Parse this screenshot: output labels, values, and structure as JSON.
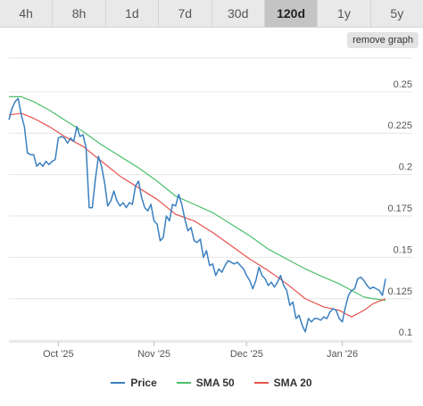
{
  "tabs": [
    {
      "label": "4h",
      "active": false
    },
    {
      "label": "8h",
      "active": false
    },
    {
      "label": "1d",
      "active": false
    },
    {
      "label": "7d",
      "active": false
    },
    {
      "label": "30d",
      "active": false
    },
    {
      "label": "120d",
      "active": true
    },
    {
      "label": "1y",
      "active": false
    },
    {
      "label": "5y",
      "active": false
    }
  ],
  "remove_graph_label": "remove graph",
  "colors": {
    "price": "#3a7fbf",
    "sma50": "#4cbf6a",
    "sma20": "#e8524e",
    "grid": "#e6e6e6"
  },
  "chart_data": {
    "type": "line",
    "x_start": "2025-09-15",
    "x_end": "2026-01-15",
    "x_tick_labels": [
      {
        "date": "2025-10-01",
        "label": "Oct '25"
      },
      {
        "date": "2025-11-01",
        "label": "Nov '25"
      },
      {
        "date": "2025-12-01",
        "label": "Dec '25"
      },
      {
        "date": "2026-01-01",
        "label": "Jan '26"
      }
    ],
    "y_ticks": [
      0.1,
      0.125,
      0.15,
      0.175,
      0.2,
      0.225,
      0.25
    ],
    "y_tick_labels": [
      "0.1",
      "0.125",
      "0.15",
      "0.175",
      "0.2",
      "0.225",
      "0.25"
    ],
    "ylim": [
      0.099,
      0.272
    ],
    "grid": true,
    "legend_position": "bottom",
    "series": [
      {
        "name": "Price",
        "color_key": "price",
        "points": [
          [
            "2025-09-15",
            0.233
          ],
          [
            "2025-09-16",
            0.24
          ],
          [
            "2025-09-17",
            0.244
          ],
          [
            "2025-09-18",
            0.246
          ],
          [
            "2025-09-19",
            0.236
          ],
          [
            "2025-09-20",
            0.229
          ],
          [
            "2025-09-21",
            0.213
          ],
          [
            "2025-09-22",
            0.212
          ],
          [
            "2025-09-23",
            0.212
          ],
          [
            "2025-09-24",
            0.205
          ],
          [
            "2025-09-25",
            0.207
          ],
          [
            "2025-09-26",
            0.205
          ],
          [
            "2025-09-27",
            0.208
          ],
          [
            "2025-09-28",
            0.206
          ],
          [
            "2025-09-29",
            0.208
          ],
          [
            "2025-09-30",
            0.209
          ],
          [
            "2025-10-01",
            0.222
          ],
          [
            "2025-10-02",
            0.223
          ],
          [
            "2025-10-03",
            0.222
          ],
          [
            "2025-10-04",
            0.219
          ],
          [
            "2025-10-05",
            0.222
          ],
          [
            "2025-10-06",
            0.22
          ],
          [
            "2025-10-07",
            0.229
          ],
          [
            "2025-10-08",
            0.223
          ],
          [
            "2025-10-09",
            0.224
          ],
          [
            "2025-10-10",
            0.216
          ],
          [
            "2025-10-11",
            0.18
          ],
          [
            "2025-10-12",
            0.18
          ],
          [
            "2025-10-13",
            0.197
          ],
          [
            "2025-10-14",
            0.211
          ],
          [
            "2025-10-15",
            0.205
          ],
          [
            "2025-10-16",
            0.195
          ],
          [
            "2025-10-17",
            0.181
          ],
          [
            "2025-10-18",
            0.184
          ],
          [
            "2025-10-19",
            0.19
          ],
          [
            "2025-10-20",
            0.184
          ],
          [
            "2025-10-21",
            0.181
          ],
          [
            "2025-10-22",
            0.183
          ],
          [
            "2025-10-23",
            0.18
          ],
          [
            "2025-10-24",
            0.183
          ],
          [
            "2025-10-25",
            0.182
          ],
          [
            "2025-10-26",
            0.193
          ],
          [
            "2025-10-27",
            0.196
          ],
          [
            "2025-10-28",
            0.186
          ],
          [
            "2025-10-29",
            0.18
          ],
          [
            "2025-10-30",
            0.178
          ],
          [
            "2025-10-31",
            0.182
          ],
          [
            "2025-11-01",
            0.172
          ],
          [
            "2025-11-02",
            0.17
          ],
          [
            "2025-11-03",
            0.16
          ],
          [
            "2025-11-04",
            0.162
          ],
          [
            "2025-11-05",
            0.175
          ],
          [
            "2025-11-06",
            0.172
          ],
          [
            "2025-11-07",
            0.182
          ],
          [
            "2025-11-08",
            0.181
          ],
          [
            "2025-11-09",
            0.188
          ],
          [
            "2025-11-10",
            0.182
          ],
          [
            "2025-11-11",
            0.173
          ],
          [
            "2025-11-12",
            0.166
          ],
          [
            "2025-11-13",
            0.168
          ],
          [
            "2025-11-14",
            0.16
          ],
          [
            "2025-11-15",
            0.159
          ],
          [
            "2025-11-16",
            0.161
          ],
          [
            "2025-11-17",
            0.15
          ],
          [
            "2025-11-18",
            0.154
          ],
          [
            "2025-11-19",
            0.145
          ],
          [
            "2025-11-20",
            0.146
          ],
          [
            "2025-11-21",
            0.139
          ],
          [
            "2025-11-22",
            0.143
          ],
          [
            "2025-11-23",
            0.141
          ],
          [
            "2025-11-24",
            0.145
          ],
          [
            "2025-11-25",
            0.148
          ],
          [
            "2025-11-26",
            0.147
          ],
          [
            "2025-11-27",
            0.146
          ],
          [
            "2025-11-28",
            0.147
          ],
          [
            "2025-11-29",
            0.145
          ],
          [
            "2025-11-30",
            0.143
          ],
          [
            "2025-12-01",
            0.139
          ],
          [
            "2025-12-02",
            0.136
          ],
          [
            "2025-12-03",
            0.131
          ],
          [
            "2025-12-04",
            0.136
          ],
          [
            "2025-12-05",
            0.144
          ],
          [
            "2025-12-06",
            0.139
          ],
          [
            "2025-12-07",
            0.137
          ],
          [
            "2025-12-08",
            0.133
          ],
          [
            "2025-12-09",
            0.135
          ],
          [
            "2025-12-10",
            0.132
          ],
          [
            "2025-12-11",
            0.135
          ],
          [
            "2025-12-12",
            0.139
          ],
          [
            "2025-12-13",
            0.133
          ],
          [
            "2025-12-14",
            0.13
          ],
          [
            "2025-12-15",
            0.121
          ],
          [
            "2025-12-16",
            0.123
          ],
          [
            "2025-12-17",
            0.113
          ],
          [
            "2025-12-18",
            0.115
          ],
          [
            "2025-12-19",
            0.109
          ],
          [
            "2025-12-20",
            0.105
          ],
          [
            "2025-12-21",
            0.113
          ],
          [
            "2025-12-22",
            0.111
          ],
          [
            "2025-12-23",
            0.113
          ],
          [
            "2025-12-24",
            0.113
          ],
          [
            "2025-12-25",
            0.112
          ],
          [
            "2025-12-26",
            0.114
          ],
          [
            "2025-12-27",
            0.113
          ],
          [
            "2025-12-28",
            0.117
          ],
          [
            "2025-12-29",
            0.119
          ],
          [
            "2025-12-30",
            0.118
          ],
          [
            "2025-12-31",
            0.113
          ],
          [
            "2026-01-01",
            0.111
          ],
          [
            "2026-01-02",
            0.12
          ],
          [
            "2026-01-03",
            0.127
          ],
          [
            "2026-01-04",
            0.13
          ],
          [
            "2026-01-05",
            0.131
          ],
          [
            "2026-01-06",
            0.137
          ],
          [
            "2026-01-07",
            0.138
          ],
          [
            "2026-01-08",
            0.136
          ],
          [
            "2026-01-09",
            0.133
          ],
          [
            "2026-01-10",
            0.131
          ],
          [
            "2026-01-11",
            0.132
          ],
          [
            "2026-01-12",
            0.131
          ],
          [
            "2026-01-13",
            0.13
          ],
          [
            "2026-01-14",
            0.127
          ],
          [
            "2026-01-15",
            0.137
          ]
        ]
      },
      {
        "name": "SMA 50",
        "color_key": "sma50",
        "points": [
          [
            "2025-09-15",
            0.247
          ],
          [
            "2025-09-19",
            0.247
          ],
          [
            "2025-09-23",
            0.244
          ],
          [
            "2025-09-28",
            0.239
          ],
          [
            "2025-10-03",
            0.233
          ],
          [
            "2025-10-09",
            0.226
          ],
          [
            "2025-10-15",
            0.218
          ],
          [
            "2025-10-21",
            0.211
          ],
          [
            "2025-10-27",
            0.204
          ],
          [
            "2025-11-02",
            0.196
          ],
          [
            "2025-11-08",
            0.187
          ],
          [
            "2025-11-14",
            0.182
          ],
          [
            "2025-11-20",
            0.177
          ],
          [
            "2025-11-26",
            0.17
          ],
          [
            "2025-12-02",
            0.163
          ],
          [
            "2025-12-08",
            0.155
          ],
          [
            "2025-12-14",
            0.149
          ],
          [
            "2025-12-20",
            0.143
          ],
          [
            "2025-12-26",
            0.138
          ],
          [
            "2025-12-31",
            0.134
          ],
          [
            "2026-01-04",
            0.13
          ],
          [
            "2026-01-08",
            0.126
          ],
          [
            "2026-01-11",
            0.125
          ],
          [
            "2026-01-15",
            0.124
          ]
        ]
      },
      {
        "name": "SMA 20",
        "color_key": "sma20",
        "points": [
          [
            "2025-09-15",
            0.236
          ],
          [
            "2025-09-19",
            0.237
          ],
          [
            "2025-09-23",
            0.234
          ],
          [
            "2025-09-28",
            0.229
          ],
          [
            "2025-10-03",
            0.223
          ],
          [
            "2025-10-09",
            0.217
          ],
          [
            "2025-10-15",
            0.208
          ],
          [
            "2025-10-21",
            0.199
          ],
          [
            "2025-10-27",
            0.192
          ],
          [
            "2025-11-02",
            0.185
          ],
          [
            "2025-11-08",
            0.176
          ],
          [
            "2025-11-14",
            0.172
          ],
          [
            "2025-11-20",
            0.165
          ],
          [
            "2025-11-26",
            0.157
          ],
          [
            "2025-12-02",
            0.149
          ],
          [
            "2025-12-08",
            0.142
          ],
          [
            "2025-12-14",
            0.134
          ],
          [
            "2025-12-20",
            0.125
          ],
          [
            "2025-12-26",
            0.12
          ],
          [
            "2025-12-31",
            0.118
          ],
          [
            "2026-01-04",
            0.114
          ],
          [
            "2026-01-08",
            0.118
          ],
          [
            "2026-01-11",
            0.122
          ],
          [
            "2026-01-15",
            0.125
          ]
        ]
      }
    ]
  }
}
